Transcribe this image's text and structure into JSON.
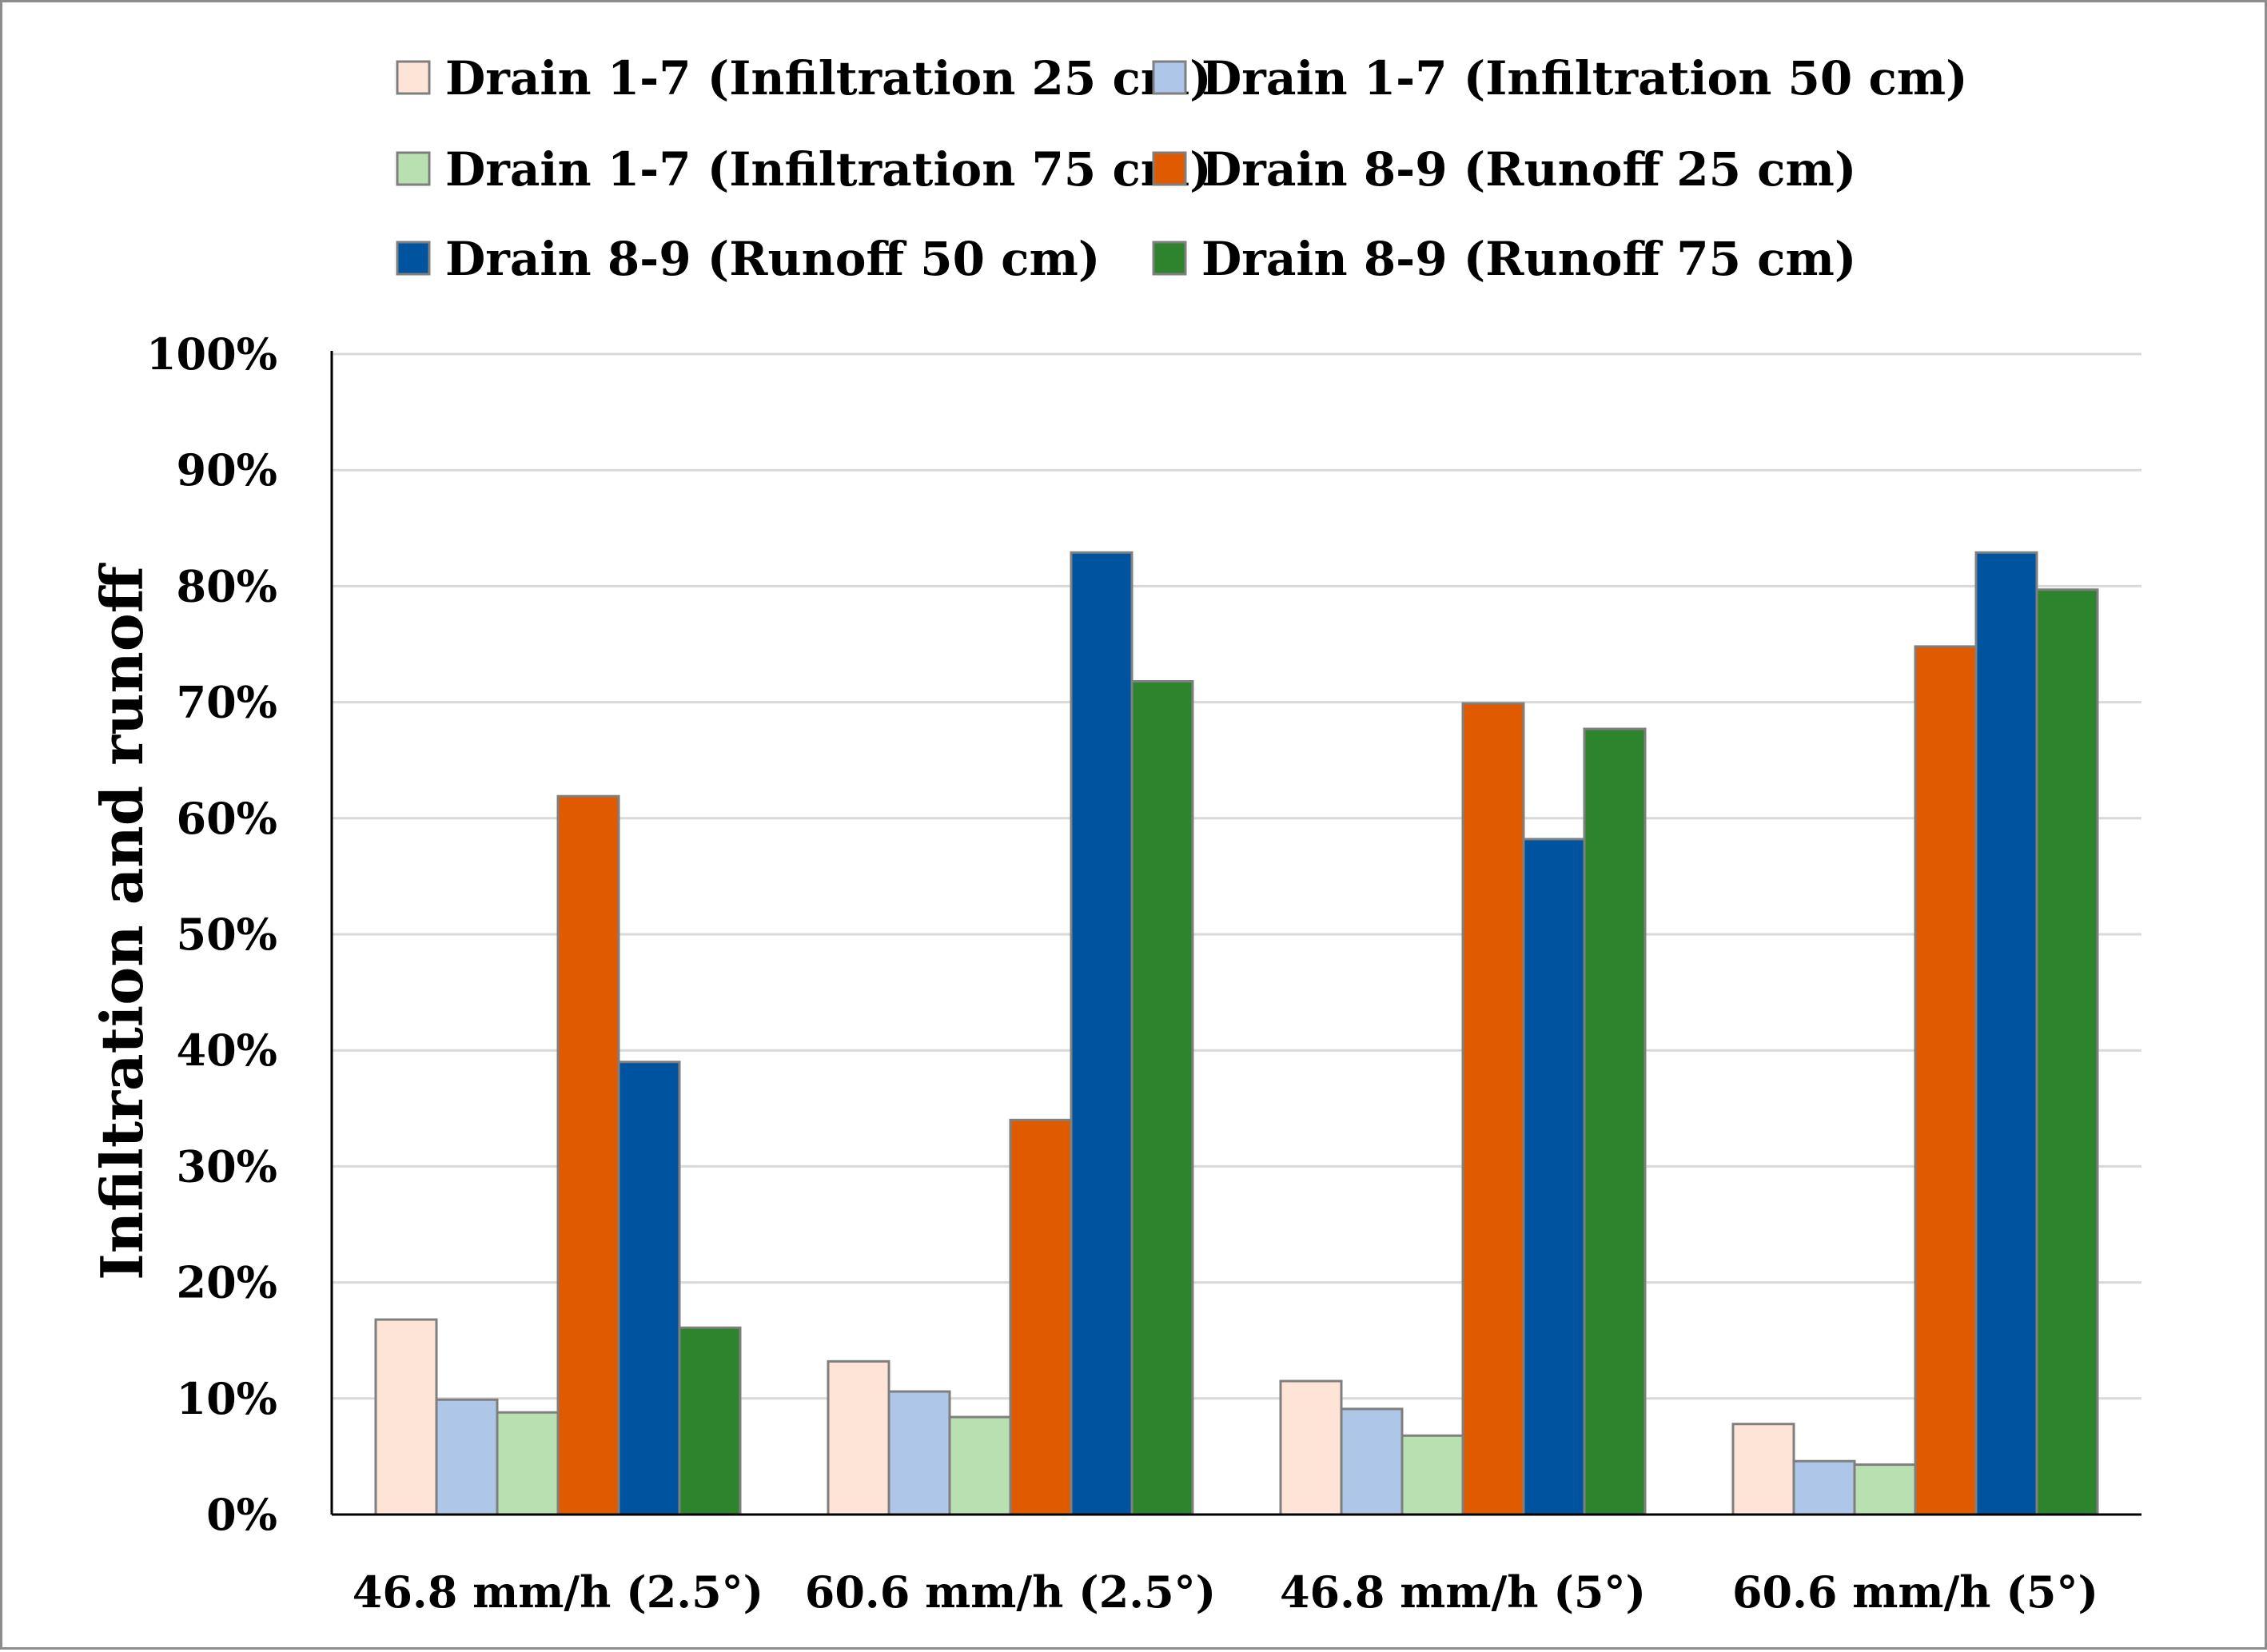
{
  "chart_data": {
    "type": "bar",
    "title": "",
    "xlabel": "",
    "ylabel": "Infiltration and runoff",
    "ylim": [
      0,
      100
    ],
    "yticks": [
      "0%",
      "10%",
      "20%",
      "30%",
      "40%",
      "50%",
      "60%",
      "70%",
      "80%",
      "90%",
      "100%"
    ],
    "grid": true,
    "legend_position": "top",
    "categories": [
      "46.8 mm/h (2.5°)",
      "60.6 mm/h (2.5°)",
      "46.8 mm/h (5°)",
      "60.6 mm/h (5°)"
    ],
    "series": [
      {
        "name": "Drain 1-7 (Infiltration 25 cm)",
        "color": "#fde4d6",
        "values": [
          16.8,
          13.2,
          11.5,
          7.8
        ]
      },
      {
        "name": "Drain 1-7 (Infiltration 50 cm)",
        "color": "#aec6e8",
        "values": [
          9.9,
          10.6,
          9.1,
          4.6
        ]
      },
      {
        "name": "Drain 1-7 (Infiltration 75 cm)",
        "color": "#b8e0b0",
        "values": [
          8.8,
          8.4,
          6.8,
          4.3
        ]
      },
      {
        "name": "Drain 8-9 (Runoff 25 cm)",
        "color": "#e05a00",
        "values": [
          61.9,
          34.0,
          69.9,
          74.8
        ]
      },
      {
        "name": "Drain 8-9 (Runoff 50 cm)",
        "color": "#00539e",
        "values": [
          39.0,
          82.9,
          58.2,
          82.9
        ]
      },
      {
        "name": "Drain 8-9 (Runoff 75 cm)",
        "color": "#2e842c",
        "values": [
          16.1,
          71.8,
          67.7,
          79.7
        ]
      }
    ]
  }
}
